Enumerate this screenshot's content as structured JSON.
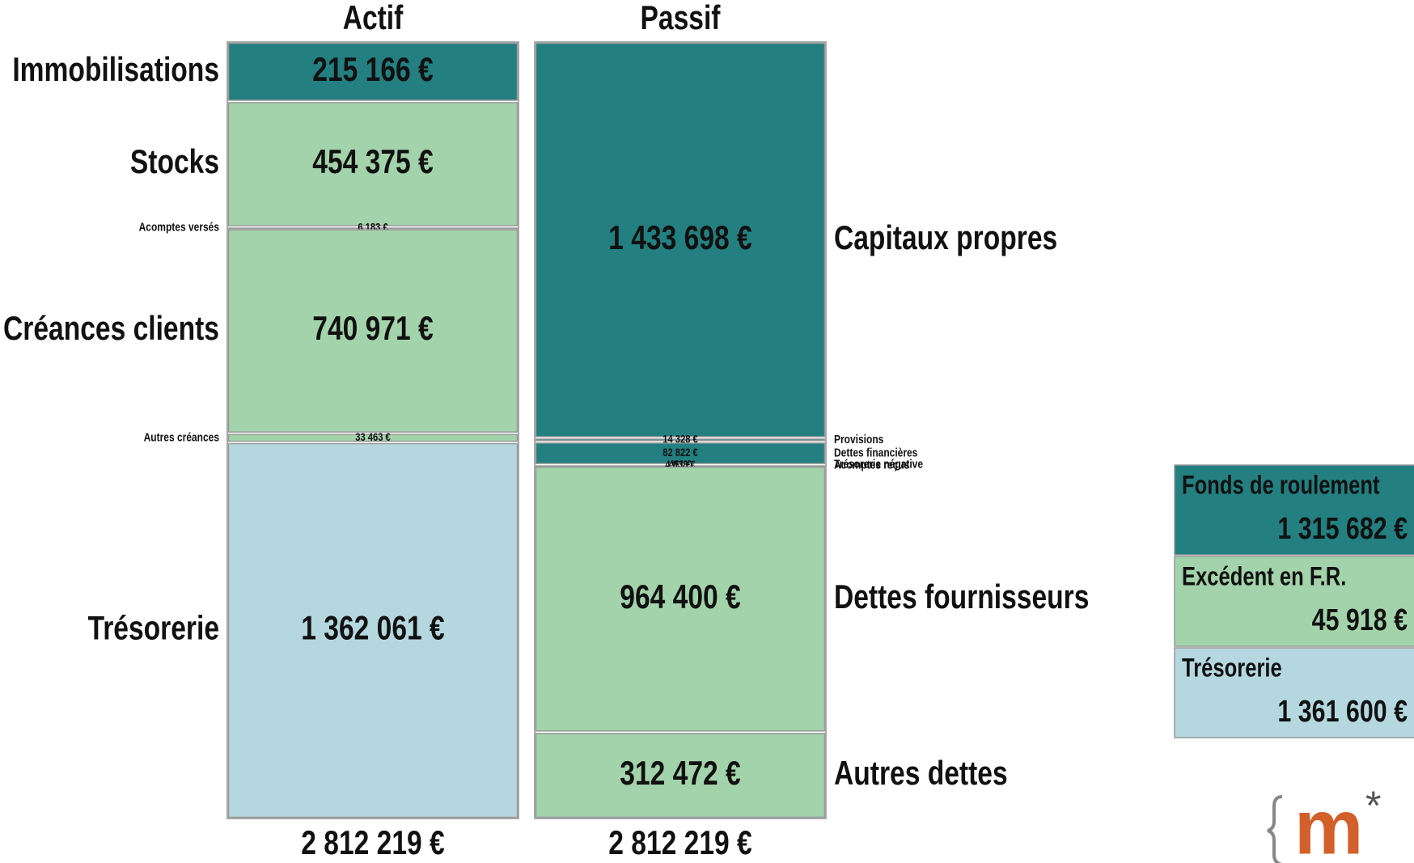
{
  "chart_data": {
    "type": "balance",
    "columns": [
      {
        "name": "Actif",
        "total": 2812219,
        "total_label": "2 812 219 €",
        "side": "left",
        "items": [
          {
            "name": "Immobilisations",
            "value": 215166,
            "value_label": "215 166 €",
            "color": "#237f80"
          },
          {
            "name": "Stocks",
            "value": 454375,
            "value_label": "454 375 €",
            "color": "#a3d3aa"
          },
          {
            "name": "Acomptes versés",
            "value": 6183,
            "value_label": "6 183 €",
            "color": "#a3d3aa"
          },
          {
            "name": "Créances clients",
            "value": 740971,
            "value_label": "740 971 €",
            "color": "#a3d3aa"
          },
          {
            "name": "Autres créances",
            "value": 33463,
            "value_label": "33 463 €",
            "color": "#a3d3aa"
          },
          {
            "name": "Trésorerie",
            "value": 1362061,
            "value_label": "1 362 061 €",
            "color": "#b5d8e0"
          }
        ]
      },
      {
        "name": "Passif",
        "total": 2812219,
        "total_label": "2 812 219 €",
        "side": "right",
        "items": [
          {
            "name": "Capitaux propres",
            "value": 1433698,
            "value_label": "1 433 698 €",
            "color": "#237f80"
          },
          {
            "name": "Provisions",
            "value": 14328,
            "value_label": "14 328 €",
            "color": "#237f80"
          },
          {
            "name": "Dettes financières",
            "value": 82822,
            "value_label": "82 822 €",
            "color": "#237f80"
          },
          {
            "name": "Trésorerie négative",
            "value": 461,
            "value_label": "461 €",
            "color": "#b5d8e0"
          },
          {
            "name": "Acomptes reçus",
            "value": 4038,
            "value_label": "4 038 €",
            "color": "#a3d3aa"
          },
          {
            "name": "Dettes fournisseurs",
            "value": 964400,
            "value_label": "964 400 €",
            "color": "#a3d3aa"
          },
          {
            "name": "Autres dettes",
            "value": 312472,
            "value_label": "312 472 €",
            "color": "#a3d3aa"
          }
        ]
      }
    ],
    "summary": [
      {
        "name": "Fonds de roulement",
        "value": "1 315 682 €",
        "color": "#237f80"
      },
      {
        "name": "Excédent en F.R.",
        "value": "45 918 €",
        "color": "#a3d3aa"
      },
      {
        "name": "Trésorerie",
        "value": "1 361 600 €",
        "color": "#b5d8e0"
      }
    ],
    "logo_letter": "m",
    "logo_mark": "*"
  }
}
